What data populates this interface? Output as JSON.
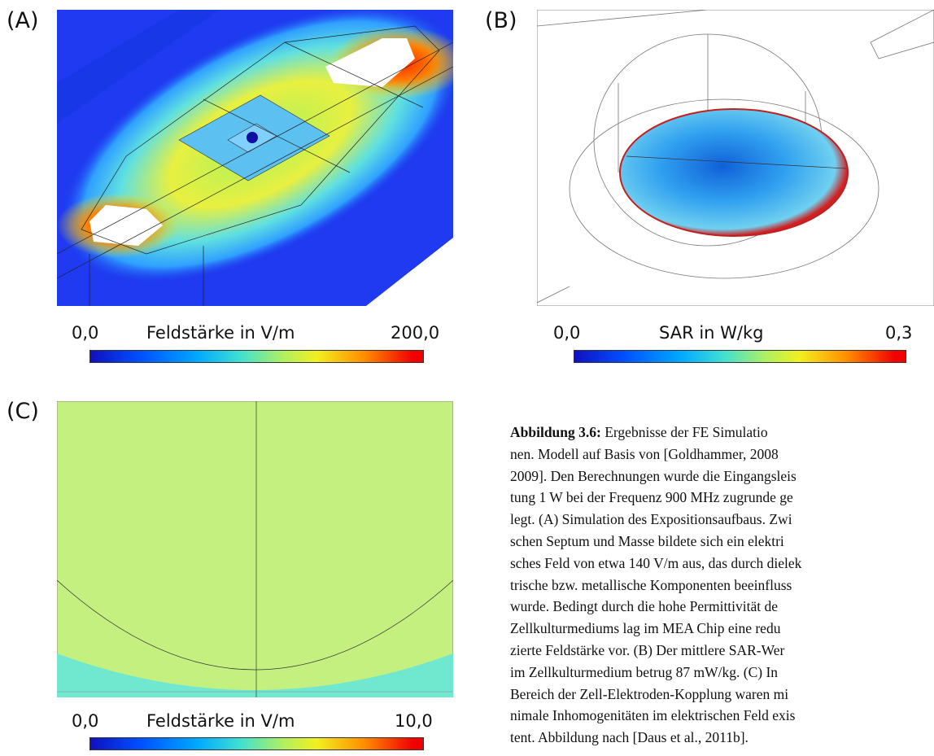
{
  "panels": [
    {
      "label": "(A)",
      "colorbar": {
        "min": "0,0",
        "title": "Feldstärke in V/m",
        "max": "200,0"
      }
    },
    {
      "label": "(B)",
      "colorbar": {
        "min": "0,0",
        "title": "SAR in W/kg",
        "max": "0,3"
      }
    },
    {
      "label": "(C)",
      "colorbar": {
        "min": "0,0",
        "title": "Feldstärke in V/m",
        "max": "10,0"
      }
    }
  ],
  "caption": {
    "label": "Abbildung 3.6:",
    "lines": [
      "Ergebnisse der FE Simulatio",
      "nen. Modell auf Basis von [Goldhammer, 2008",
      "2009]. Den Berechnungen wurde die Eingangsleis",
      "tung 1 W bei der Frequenz 900 MHz zugrunde ge",
      "legt. (A) Simulation des Expositionsaufbaus. Zwi",
      "schen Septum und Masse bildete sich ein elektri",
      "sches Feld von etwa 140 V/m aus, das durch dielek",
      "trische bzw. metallische Komponenten beeinfluss",
      "wurde. Bedingt durch die hohe Permittivität de",
      "Zellkulturmediums lag im MEA Chip eine redu",
      "zierte Feldstärke vor. (B) Der mittlere SAR-Wer",
      "im Zellkulturmedium betrug 87 mW/kg. (C) In",
      "Bereich der Zell-Elektroden-Kopplung waren mi",
      "nimale Inhomogenitäten im elektrischen Feld exis",
      "tent. Abbildung nach [Daus et al., 2011b]."
    ]
  }
}
